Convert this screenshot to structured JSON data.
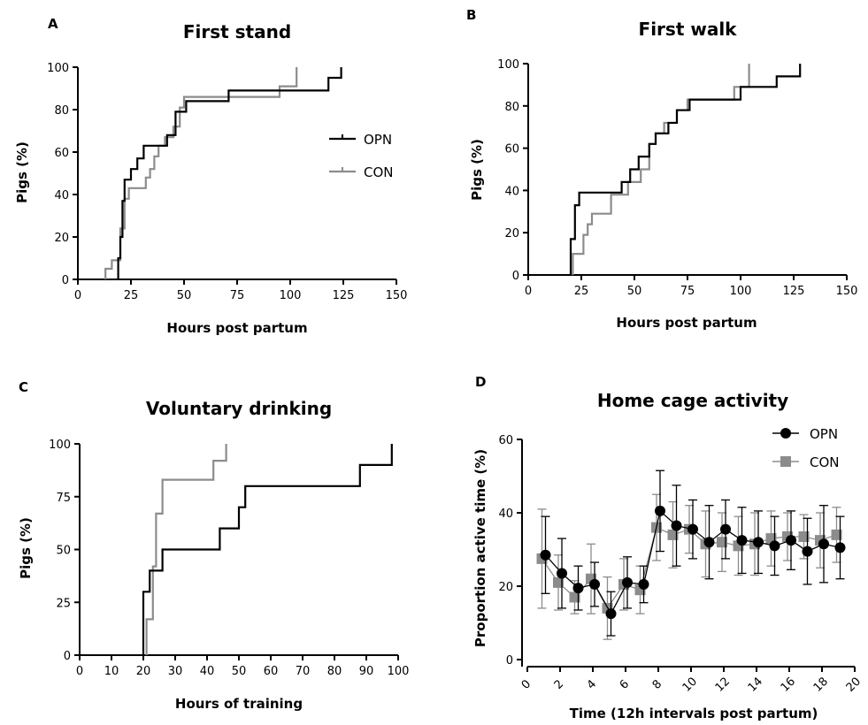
{
  "chart_data": [
    {
      "panel": "A",
      "type": "line",
      "title": "First stand",
      "xlabel": "Hours post partum",
      "ylabel": "Pigs (%)",
      "xlim": [
        0,
        150
      ],
      "ylim": [
        0,
        100
      ],
      "xticks": [
        "0",
        "25",
        "50",
        "75",
        "100",
        "125",
        "150"
      ],
      "yticks": [
        "0",
        "20",
        "40",
        "60",
        "80",
        "100"
      ],
      "legend": "right",
      "series": [
        {
          "name": "OPN",
          "color": "#000000",
          "steps": [
            [
              19,
              0
            ],
            [
              19,
              10
            ],
            [
              20,
              20
            ],
            [
              21,
              37
            ],
            [
              22,
              47
            ],
            [
              25,
              52
            ],
            [
              28,
              57
            ],
            [
              31,
              63
            ],
            [
              38,
              63
            ],
            [
              42,
              68
            ],
            [
              46,
              79
            ],
            [
              51,
              84
            ],
            [
              71,
              89
            ],
            [
              118,
              95
            ],
            [
              124,
              100
            ]
          ]
        },
        {
          "name": "CON",
          "color": "#8c8c8c",
          "steps": [
            [
              13,
              0
            ],
            [
              13,
              5
            ],
            [
              16,
              9
            ],
            [
              20,
              24
            ],
            [
              22,
              38
            ],
            [
              24,
              43
            ],
            [
              32,
              48
            ],
            [
              34,
              52
            ],
            [
              36,
              58
            ],
            [
              38,
              63
            ],
            [
              41,
              67
            ],
            [
              45,
              72
            ],
            [
              48,
              81
            ],
            [
              50,
              86
            ],
            [
              95,
              91
            ],
            [
              103,
              100
            ]
          ]
        }
      ]
    },
    {
      "panel": "B",
      "type": "line",
      "title": "First walk",
      "xlabel": "Hours post partum",
      "ylabel": "Pigs (%)",
      "xlim": [
        0,
        150
      ],
      "ylim": [
        0,
        100
      ],
      "xticks": [
        "0",
        "25",
        "50",
        "75",
        "100",
        "125",
        "150"
      ],
      "yticks": [
        "0",
        "20",
        "40",
        "60",
        "80",
        "100"
      ],
      "series": [
        {
          "name": "OPN",
          "color": "#000000",
          "steps": [
            [
              20,
              0
            ],
            [
              20,
              17
            ],
            [
              22,
              33
            ],
            [
              24,
              39
            ],
            [
              40,
              39
            ],
            [
              44,
              44
            ],
            [
              48,
              50
            ],
            [
              52,
              56
            ],
            [
              57,
              62
            ],
            [
              60,
              67
            ],
            [
              66,
              72
            ],
            [
              70,
              78
            ],
            [
              76,
              83
            ],
            [
              100,
              89
            ],
            [
              117,
              94
            ],
            [
              128,
              100
            ]
          ]
        },
        {
          "name": "CON",
          "color": "#8c8c8c",
          "steps": [
            [
              21,
              0
            ],
            [
              21,
              10
            ],
            [
              26,
              19
            ],
            [
              28,
              24
            ],
            [
              30,
              29
            ],
            [
              39,
              38
            ],
            [
              47,
              44
            ],
            [
              53,
              50
            ],
            [
              57,
              62
            ],
            [
              60,
              67
            ],
            [
              64,
              72
            ],
            [
              70,
              78
            ],
            [
              75,
              83
            ],
            [
              97,
              89
            ],
            [
              104,
              100
            ]
          ]
        }
      ]
    },
    {
      "panel": "C",
      "type": "line",
      "title": "Voluntary drinking",
      "xlabel": "Hours of training",
      "ylabel": "Pigs (%)",
      "xlim": [
        0,
        100
      ],
      "ylim": [
        0,
        100
      ],
      "xticks": [
        "0",
        "10",
        "20",
        "30",
        "40",
        "50",
        "60",
        "70",
        "80",
        "90",
        "100"
      ],
      "yticks": [
        "0",
        "25",
        "50",
        "75",
        "100"
      ],
      "series": [
        {
          "name": "OPN",
          "color": "#000000",
          "steps": [
            [
              20,
              0
            ],
            [
              20,
              30
            ],
            [
              22,
              40
            ],
            [
              26,
              50
            ],
            [
              44,
              60
            ],
            [
              50,
              70
            ],
            [
              52,
              80
            ],
            [
              88,
              90
            ],
            [
              98,
              100
            ]
          ]
        },
        {
          "name": "CON",
          "color": "#8c8c8c",
          "steps": [
            [
              21,
              0
            ],
            [
              21,
              17
            ],
            [
              23,
              42
            ],
            [
              24,
              67
            ],
            [
              26,
              83
            ],
            [
              42,
              92
            ],
            [
              46,
              100
            ]
          ]
        }
      ]
    },
    {
      "panel": "D",
      "type": "line",
      "title": "Home cage activity",
      "xlabel": "Time (12h intervals post partum)",
      "ylabel": "Proportion active time (%)",
      "xlim": [
        0,
        20
      ],
      "ylim": [
        0,
        60
      ],
      "xticks": [
        "0",
        "2",
        "4",
        "6",
        "8",
        "10",
        "12",
        "14",
        "16",
        "18",
        "20"
      ],
      "yticks": [
        "0",
        "20",
        "40",
        "60"
      ],
      "legend": "top-right",
      "x": [
        1,
        2,
        3,
        4,
        5,
        6,
        7,
        8,
        9,
        10,
        11,
        12,
        13,
        14,
        15,
        16,
        17,
        18,
        19
      ],
      "series": [
        {
          "name": "OPN",
          "color": "#000000",
          "marker": "circle",
          "values": [
            28.5,
            23.5,
            19.5,
            20.5,
            12.5,
            21,
            20.5,
            40.5,
            36.5,
            35.5,
            32,
            35.5,
            32.5,
            32,
            31,
            32.5,
            29.5,
            31.5,
            30.5
          ],
          "errors": [
            10.5,
            9.5,
            6,
            6,
            6,
            7,
            5,
            11,
            11,
            8,
            10,
            8,
            9,
            8.5,
            8,
            8,
            9,
            10.5,
            8.5
          ]
        },
        {
          "name": "CON",
          "color": "#8c8c8c",
          "marker": "square",
          "values": [
            27.5,
            21,
            17,
            22,
            14,
            20.5,
            19,
            36,
            34,
            35.5,
            31.5,
            32,
            31,
            31.5,
            33,
            33.5,
            33.5,
            32.5,
            34
          ],
          "errors": [
            13.5,
            7.5,
            4.5,
            9.5,
            8.5,
            7,
            6.5,
            9,
            9,
            6.5,
            9,
            8,
            8,
            8.5,
            7.5,
            6.5,
            6,
            7.5,
            7.5
          ]
        }
      ]
    }
  ]
}
